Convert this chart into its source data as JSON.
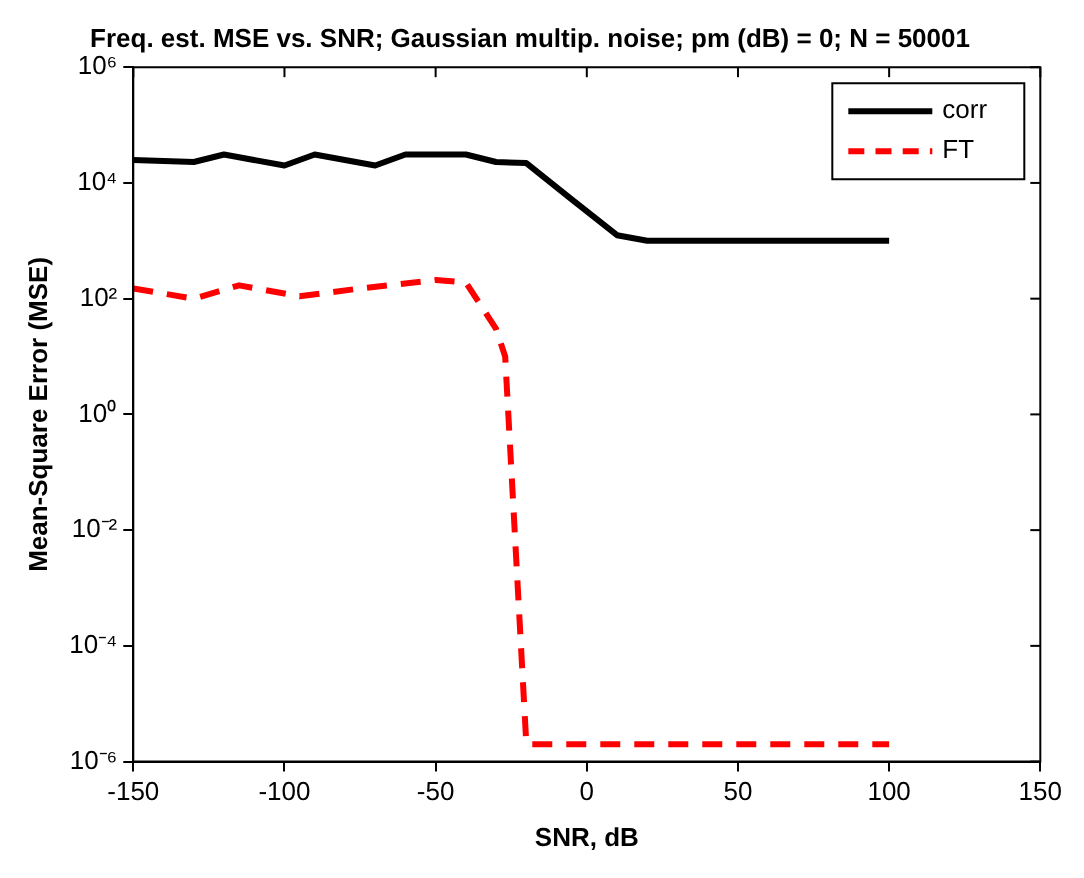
{
  "chart_data": {
    "type": "line",
    "title": "Freq. est. MSE vs. SNR; Gaussian multip. noise; pm (dB) = 0; N = 50001",
    "xlabel": "SNR, dB",
    "ylabel": "Mean-Square Error (MSE)",
    "log": "y",
    "grid": false,
    "legend": "top right",
    "marker": "none",
    "xlim": [
      -150,
      150
    ],
    "xticks": [
      -150,
      -100,
      -50,
      0,
      50,
      100,
      150
    ],
    "ylim": [
      1e-06,
      1000000.0
    ],
    "yticks": [
      {
        "value": 1e-06,
        "label": "10⁻⁶"
      },
      {
        "value": 0.0001,
        "label": "10⁻⁴"
      },
      {
        "value": 0.01,
        "label": "10⁻²"
      },
      {
        "value": 1,
        "label": "10⁰"
      },
      {
        "value": 100,
        "label": "10²"
      },
      {
        "value": 10000,
        "label": "10⁴"
      },
      {
        "value": 1000000,
        "label": "10⁶"
      }
    ],
    "series": [
      {
        "name": "corr",
        "color": "#000000",
        "line_style": "solid",
        "x": [
          -150,
          -130,
          -120,
          -100,
          -90,
          -70,
          -60,
          -40,
          -30,
          -20,
          -5,
          10,
          20,
          100
        ],
        "values": [
          25000,
          23000,
          31000,
          20000,
          31000,
          20000,
          31000,
          31000,
          23000,
          22000,
          5200,
          1250,
          1000,
          1000
        ]
      },
      {
        "name": "FT",
        "color": "#ff0000",
        "line_style": "dashed",
        "x": [
          -150,
          -130,
          -115,
          -95,
          -75,
          -50,
          -40,
          -30,
          -27,
          -20,
          100
        ],
        "values": [
          150,
          100,
          170,
          110,
          150,
          210,
          190,
          30,
          10,
          2e-06,
          2e-06
        ]
      }
    ]
  }
}
